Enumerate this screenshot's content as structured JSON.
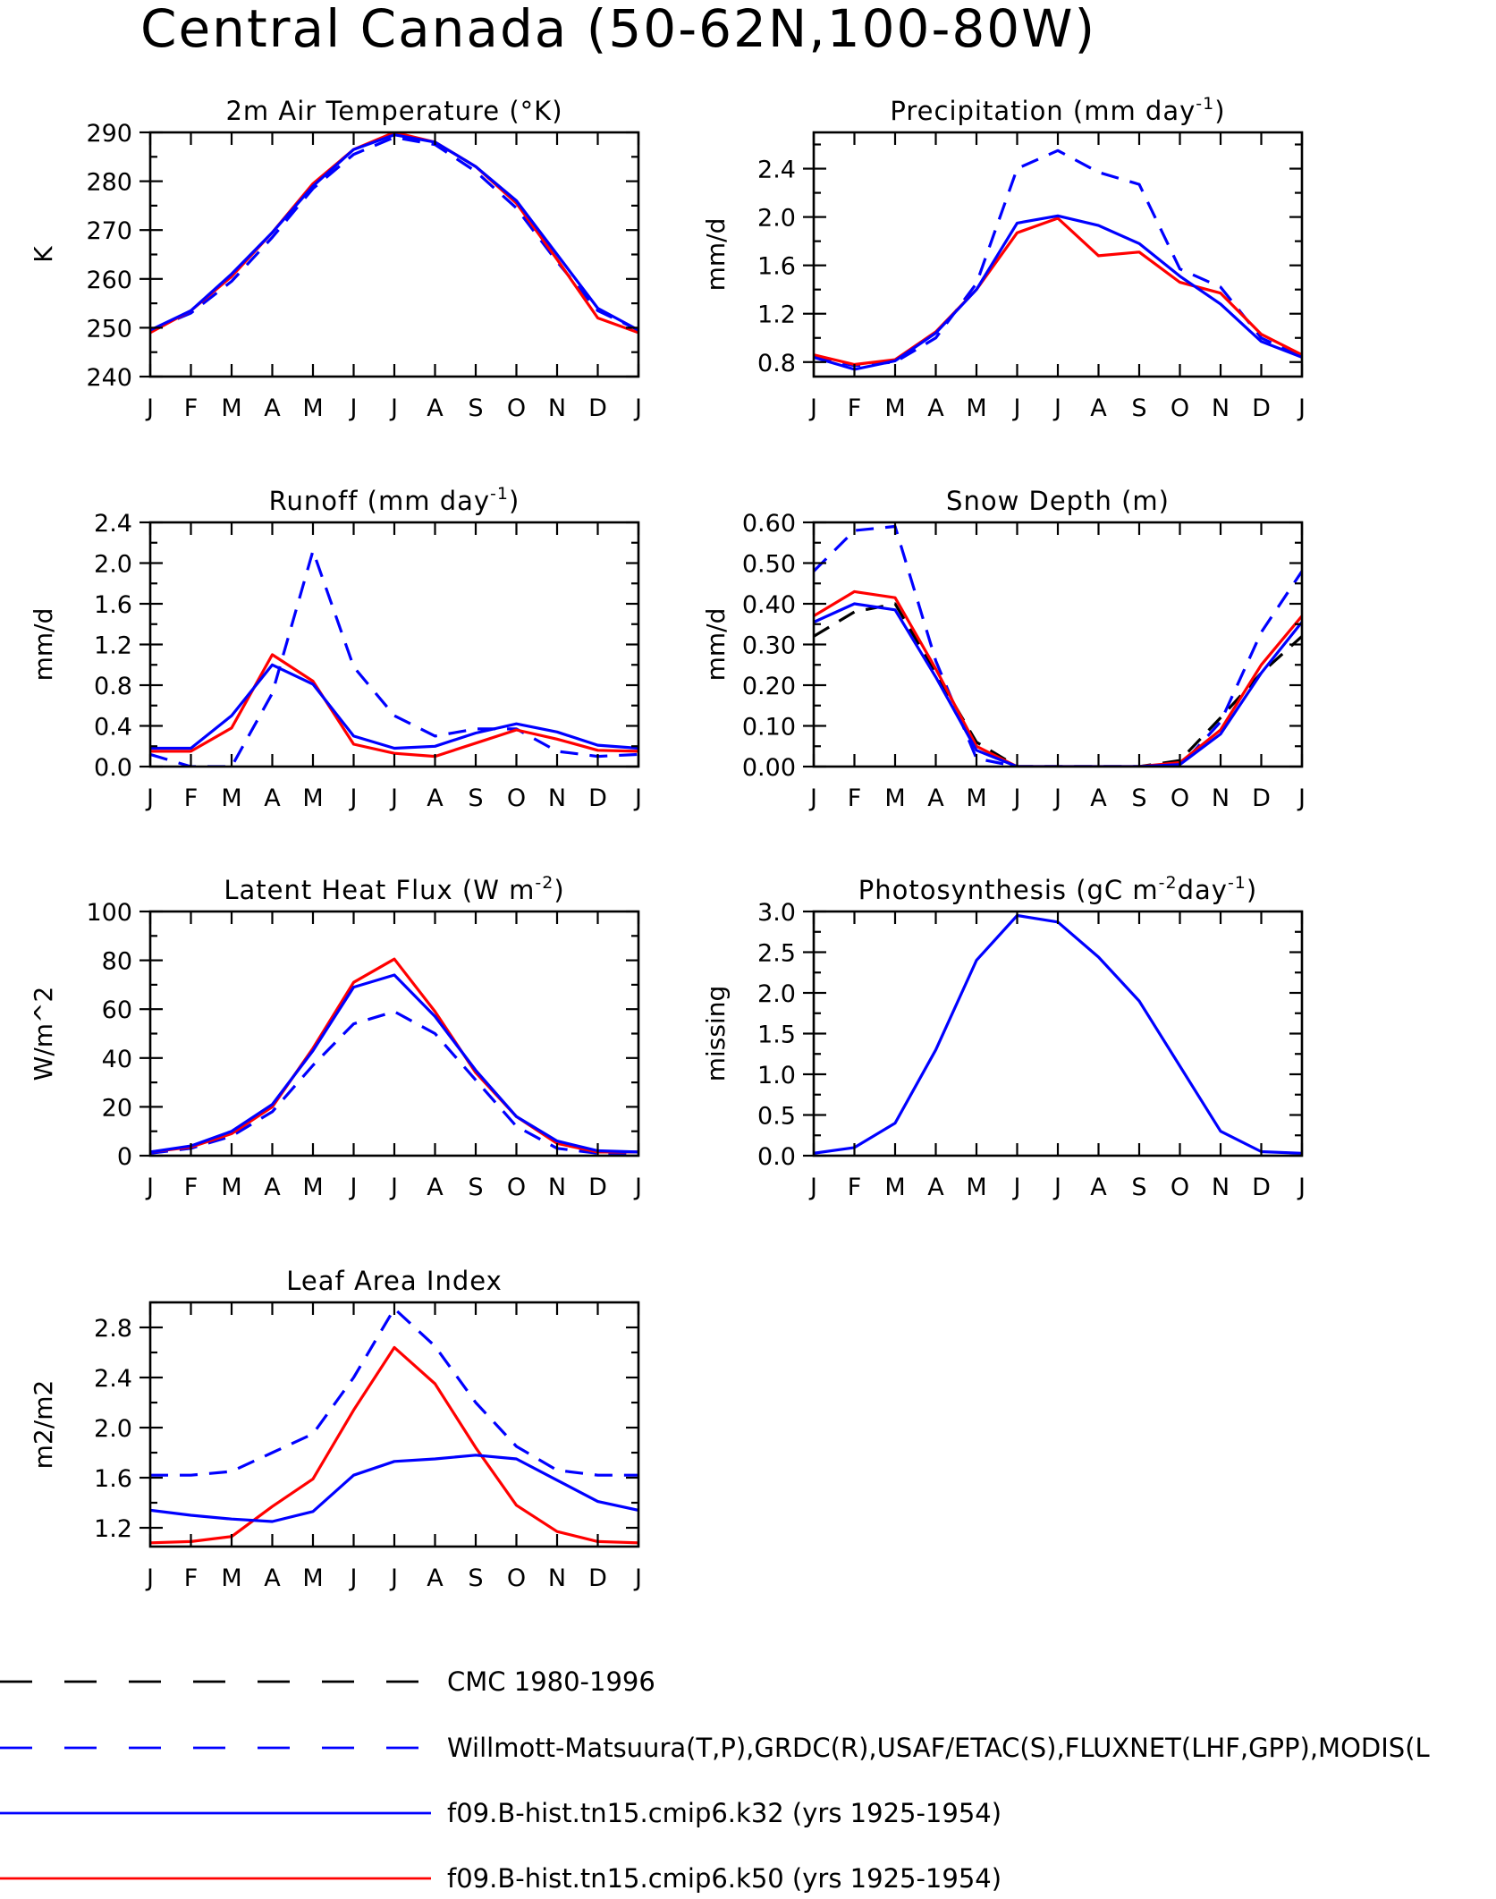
{
  "page_title": "Central Canada (50-62N,100-80W)",
  "months": [
    "J",
    "F",
    "M",
    "A",
    "M",
    "J",
    "J",
    "A",
    "S",
    "O",
    "N",
    "D",
    "J"
  ],
  "colors": {
    "model_k32": "#0000ff",
    "model_k50": "#ff0000",
    "obs": "#0000ff",
    "cmc": "#000000"
  },
  "legend": [
    {
      "label": "CMC 1980-1996",
      "color": "#000000",
      "style": "dashed"
    },
    {
      "label": "Willmott-Matsuura(T,P),GRDC(R),USAF/ETAC(S),FLUXNET(LHF,GPP),MODIS(L",
      "color": "#0000ff",
      "style": "dashed"
    },
    {
      "label": "f09.B-hist.tn15.cmip6.k32 (yrs 1925-1954)",
      "color": "#0000ff",
      "style": "solid"
    },
    {
      "label": "f09.B-hist.tn15.cmip6.k50 (yrs 1925-1954)",
      "color": "#ff0000",
      "style": "solid"
    }
  ],
  "chart_data": [
    {
      "type": "line",
      "title": "2m Air Temperature (°K)",
      "ylabel": "K",
      "ylim": [
        240,
        290
      ],
      "yticks": [
        240,
        250,
        260,
        270,
        280,
        290
      ],
      "ytick_labels": [
        "240",
        "250",
        "260",
        "270",
        "280",
        "290"
      ],
      "series": [
        {
          "legend_index": 1,
          "color": "#0000ff",
          "style": "dashed",
          "values": [
            249.5,
            253,
            259.5,
            268.5,
            278.5,
            285.5,
            289,
            287.5,
            282,
            274.5,
            263.5,
            253.5,
            249.5
          ]
        },
        {
          "legend_index": 3,
          "color": "#ff0000",
          "style": "solid",
          "values": [
            249,
            253.5,
            260.5,
            269.5,
            279.5,
            286.5,
            290,
            288,
            283,
            275.5,
            264,
            252,
            249
          ]
        },
        {
          "legend_index": 2,
          "color": "#0000ff",
          "style": "solid",
          "values": [
            249.5,
            253.5,
            261,
            269.5,
            279,
            286.5,
            289.5,
            288,
            283,
            276,
            265,
            254,
            249.5
          ]
        }
      ]
    },
    {
      "type": "line",
      "title": "Precipitation (mm day",
      "title_sup": "-1",
      "title_end": ")",
      "ylabel": "mm/d",
      "ylim": [
        0.68,
        2.7
      ],
      "yticks": [
        0.8,
        1.2,
        1.6,
        2.0,
        2.4
      ],
      "ytick_labels": [
        "0.8",
        "1.2",
        "1.6",
        "2.0",
        "2.4"
      ],
      "series": [
        {
          "legend_index": 1,
          "color": "#0000ff",
          "style": "dashed",
          "values": [
            0.84,
            0.77,
            0.8,
            1.0,
            1.45,
            2.4,
            2.55,
            2.37,
            2.27,
            1.57,
            1.42,
            1.0,
            0.84
          ]
        },
        {
          "legend_index": 3,
          "color": "#ff0000",
          "style": "solid",
          "values": [
            0.86,
            0.78,
            0.82,
            1.05,
            1.4,
            1.87,
            1.99,
            1.68,
            1.71,
            1.46,
            1.37,
            1.03,
            0.86
          ]
        },
        {
          "legend_index": 2,
          "color": "#0000ff",
          "style": "solid",
          "values": [
            0.84,
            0.74,
            0.81,
            1.04,
            1.4,
            1.95,
            2.01,
            1.93,
            1.78,
            1.51,
            1.28,
            0.97,
            0.84
          ]
        }
      ]
    },
    {
      "type": "line",
      "title": "Runoff (mm day",
      "title_sup": "-1",
      "title_end": ")",
      "ylabel": "mm/d",
      "ylim": [
        0,
        2.4
      ],
      "yticks": [
        0.0,
        0.4,
        0.8,
        1.2,
        1.6,
        2.0,
        2.4
      ],
      "ytick_labels": [
        "0.0",
        "0.4",
        "0.8",
        "1.2",
        "1.6",
        "2.0",
        "2.4"
      ],
      "series": [
        {
          "legend_index": 1,
          "color": "#0000ff",
          "style": "dashed",
          "values": [
            0.12,
            0.0,
            0.0,
            0.72,
            2.12,
            0.98,
            0.5,
            0.3,
            0.37,
            0.37,
            0.15,
            0.1,
            0.12
          ]
        },
        {
          "legend_index": 3,
          "color": "#ff0000",
          "style": "solid",
          "values": [
            0.15,
            0.15,
            0.38,
            1.1,
            0.84,
            0.22,
            0.13,
            0.1,
            0.23,
            0.36,
            0.27,
            0.16,
            0.15
          ]
        },
        {
          "legend_index": 2,
          "color": "#0000ff",
          "style": "solid",
          "values": [
            0.18,
            0.18,
            0.5,
            1.0,
            0.81,
            0.3,
            0.18,
            0.2,
            0.33,
            0.42,
            0.34,
            0.21,
            0.18
          ]
        }
      ]
    },
    {
      "type": "line",
      "title": "Snow Depth (m)",
      "ylabel": "mm/d",
      "ylim": [
        0,
        0.6
      ],
      "yticks": [
        0.0,
        0.1,
        0.2,
        0.3,
        0.4,
        0.5,
        0.6
      ],
      "ytick_labels": [
        "0.00",
        "0.10",
        "0.20",
        "0.30",
        "0.40",
        "0.50",
        "0.60"
      ],
      "series": [
        {
          "legend_index": 0,
          "color": "#000000",
          "style": "dashed",
          "values": [
            0.32,
            0.38,
            0.4,
            0.23,
            0.06,
            0.0,
            0.0,
            0.0,
            0.0,
            0.015,
            0.12,
            0.23,
            0.32
          ]
        },
        {
          "legend_index": 1,
          "color": "#0000ff",
          "style": "dashed",
          "values": [
            0.48,
            0.58,
            0.59,
            0.26,
            0.02,
            0.0,
            0.0,
            0.0,
            0.0,
            0.0,
            0.11,
            0.33,
            0.48
          ]
        },
        {
          "legend_index": 3,
          "color": "#ff0000",
          "style": "solid",
          "values": [
            0.37,
            0.43,
            0.415,
            0.24,
            0.05,
            0.0,
            0.0,
            0.0,
            0.0,
            0.01,
            0.09,
            0.25,
            0.37
          ]
        },
        {
          "legend_index": 2,
          "color": "#0000ff",
          "style": "solid",
          "values": [
            0.355,
            0.4,
            0.385,
            0.22,
            0.04,
            0.0,
            0.0,
            0.0,
            0.0,
            0.005,
            0.08,
            0.23,
            0.355
          ]
        }
      ]
    },
    {
      "type": "line",
      "title": "Latent Heat Flux (W m",
      "title_sup": "-2",
      "title_end": ")",
      "ylabel": "W/m^2",
      "ylim": [
        0,
        100
      ],
      "yticks": [
        0,
        20,
        40,
        60,
        80,
        100
      ],
      "ytick_labels": [
        "0",
        "20",
        "40",
        "60",
        "80",
        "100"
      ],
      "series": [
        {
          "legend_index": 1,
          "color": "#0000ff",
          "style": "dashed",
          "values": [
            1,
            3,
            8,
            18,
            37,
            54,
            59,
            50,
            31,
            12,
            3,
            1,
            1
          ]
        },
        {
          "legend_index": 3,
          "color": "#ff0000",
          "style": "solid",
          "values": [
            1.5,
            3.5,
            9,
            20,
            44,
            71,
            80.5,
            59,
            34,
            16,
            5,
            1.5,
            1.5
          ]
        },
        {
          "legend_index": 2,
          "color": "#0000ff",
          "style": "solid",
          "values": [
            1.5,
            4,
            10,
            21,
            43,
            69,
            74,
            57,
            35,
            16,
            6,
            2,
            1.5
          ]
        }
      ]
    },
    {
      "type": "line",
      "title": "Photosynthesis (gC m",
      "title_sup": "-2",
      "title_mid": "day",
      "title_sup2": "-1",
      "title_end": ")",
      "ylabel": "missing",
      "ylim": [
        0,
        3
      ],
      "yticks": [
        0.0,
        0.5,
        1.0,
        1.5,
        2.0,
        2.5,
        3.0
      ],
      "ytick_labels": [
        "0.0",
        "0.5",
        "1.0",
        "1.5",
        "2.0",
        "2.5",
        "3.0"
      ],
      "series": [
        {
          "legend_index": 2,
          "color": "#0000ff",
          "style": "solid",
          "values": [
            0.03,
            0.1,
            0.4,
            1.3,
            2.4,
            2.95,
            2.87,
            2.44,
            1.9,
            1.1,
            0.3,
            0.05,
            0.03
          ]
        }
      ]
    },
    {
      "type": "line",
      "title": "Leaf Area Index",
      "ylabel": "m2/m2",
      "ylim": [
        1.05,
        3.0
      ],
      "yticks": [
        1.2,
        1.6,
        2.0,
        2.4,
        2.8
      ],
      "ytick_labels": [
        "1.2",
        "1.6",
        "2.0",
        "2.4",
        "2.8"
      ],
      "series": [
        {
          "legend_index": 1,
          "color": "#0000ff",
          "style": "dashed",
          "values": [
            1.62,
            1.62,
            1.65,
            1.8,
            1.95,
            2.4,
            2.95,
            2.65,
            2.2,
            1.85,
            1.66,
            1.62,
            1.62
          ]
        },
        {
          "legend_index": 3,
          "color": "#ff0000",
          "style": "solid",
          "values": [
            1.08,
            1.09,
            1.13,
            1.37,
            1.59,
            2.14,
            2.64,
            2.35,
            1.84,
            1.38,
            1.17,
            1.09,
            1.08
          ]
        },
        {
          "legend_index": 2,
          "color": "#0000ff",
          "style": "solid",
          "values": [
            1.34,
            1.3,
            1.27,
            1.25,
            1.33,
            1.62,
            1.73,
            1.75,
            1.78,
            1.75,
            1.58,
            1.41,
            1.34
          ]
        }
      ]
    }
  ]
}
